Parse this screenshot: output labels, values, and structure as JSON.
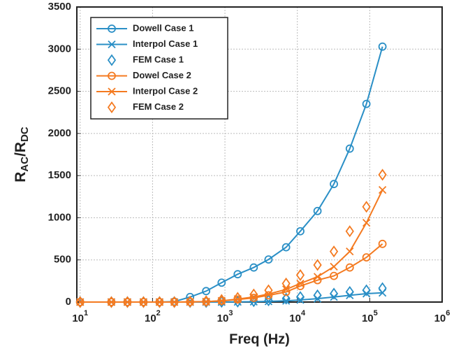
{
  "chart_data": {
    "type": "line",
    "x_label": "Freq (Hz)",
    "y_label": [
      "R",
      "AC",
      "/R",
      "DC"
    ],
    "xscale": "log",
    "xlim": [
      9,
      1000000
    ],
    "ylim": [
      0,
      3500
    ],
    "xticks": [
      {
        "value": 10,
        "label": "10",
        "exponent": "1"
      },
      {
        "value": 100,
        "label": "10",
        "exponent": "2"
      },
      {
        "value": 1000,
        "label": "10",
        "exponent": "3"
      },
      {
        "value": 10000,
        "label": "10",
        "exponent": "4"
      },
      {
        "value": 100000,
        "label": "10",
        "exponent": "5"
      },
      {
        "value": 1000000,
        "label": "10",
        "exponent": "6"
      }
    ],
    "yticks": [
      0,
      500,
      1000,
      1500,
      2000,
      2500,
      3000,
      3500
    ],
    "grid": true,
    "legend": "upper left",
    "x": [
      10,
      27,
      45,
      75,
      125,
      200,
      330,
      550,
      900,
      1500,
      2500,
      4000,
      7000,
      11000,
      19000,
      32000,
      53000,
      90000,
      150000
    ],
    "series": [
      {
        "name": "Dowell Case 1",
        "color": "#2a8fc6",
        "marker": "circle",
        "line": true,
        "values": [
          0,
          0,
          0,
          0,
          0,
          5,
          60,
          130,
          230,
          330,
          410,
          505,
          650,
          840,
          1080,
          1400,
          1820,
          2350,
          3030
        ]
      },
      {
        "name": "Interpol Case 1",
        "color": "#2a8fc6",
        "marker": "cross",
        "line": true,
        "values": [
          0,
          0,
          0,
          0,
          0,
          0,
          0,
          0,
          0,
          2,
          4,
          8,
          15,
          25,
          40,
          60,
          80,
          100,
          110
        ]
      },
      {
        "name": "FEM Case 1",
        "color": "#2a8fc6",
        "marker": "diamond",
        "line": false,
        "values": [
          0,
          0,
          0,
          0,
          0,
          0,
          0,
          0,
          2,
          5,
          10,
          20,
          40,
          60,
          80,
          100,
          120,
          140,
          165
        ]
      },
      {
        "name": "Dowel Case 2",
        "color": "#f47a20",
        "marker": "circle",
        "line": true,
        "values": [
          0,
          0,
          0,
          0,
          0,
          0,
          2,
          5,
          15,
          30,
          50,
          80,
          120,
          190,
          260,
          310,
          410,
          530,
          690
        ]
      },
      {
        "name": "Interpol Case 2",
        "color": "#f47a20",
        "marker": "cross",
        "line": true,
        "values": [
          0,
          0,
          0,
          0,
          0,
          0,
          2,
          5,
          15,
          35,
          60,
          95,
          150,
          220,
          300,
          420,
          600,
          940,
          1330
        ]
      },
      {
        "name": "FEM Case 2",
        "color": "#f47a20",
        "marker": "diamond",
        "line": false,
        "values": [
          0,
          0,
          0,
          0,
          0,
          0,
          5,
          10,
          25,
          50,
          90,
          140,
          220,
          320,
          440,
          600,
          840,
          1130,
          1510
        ]
      }
    ]
  }
}
